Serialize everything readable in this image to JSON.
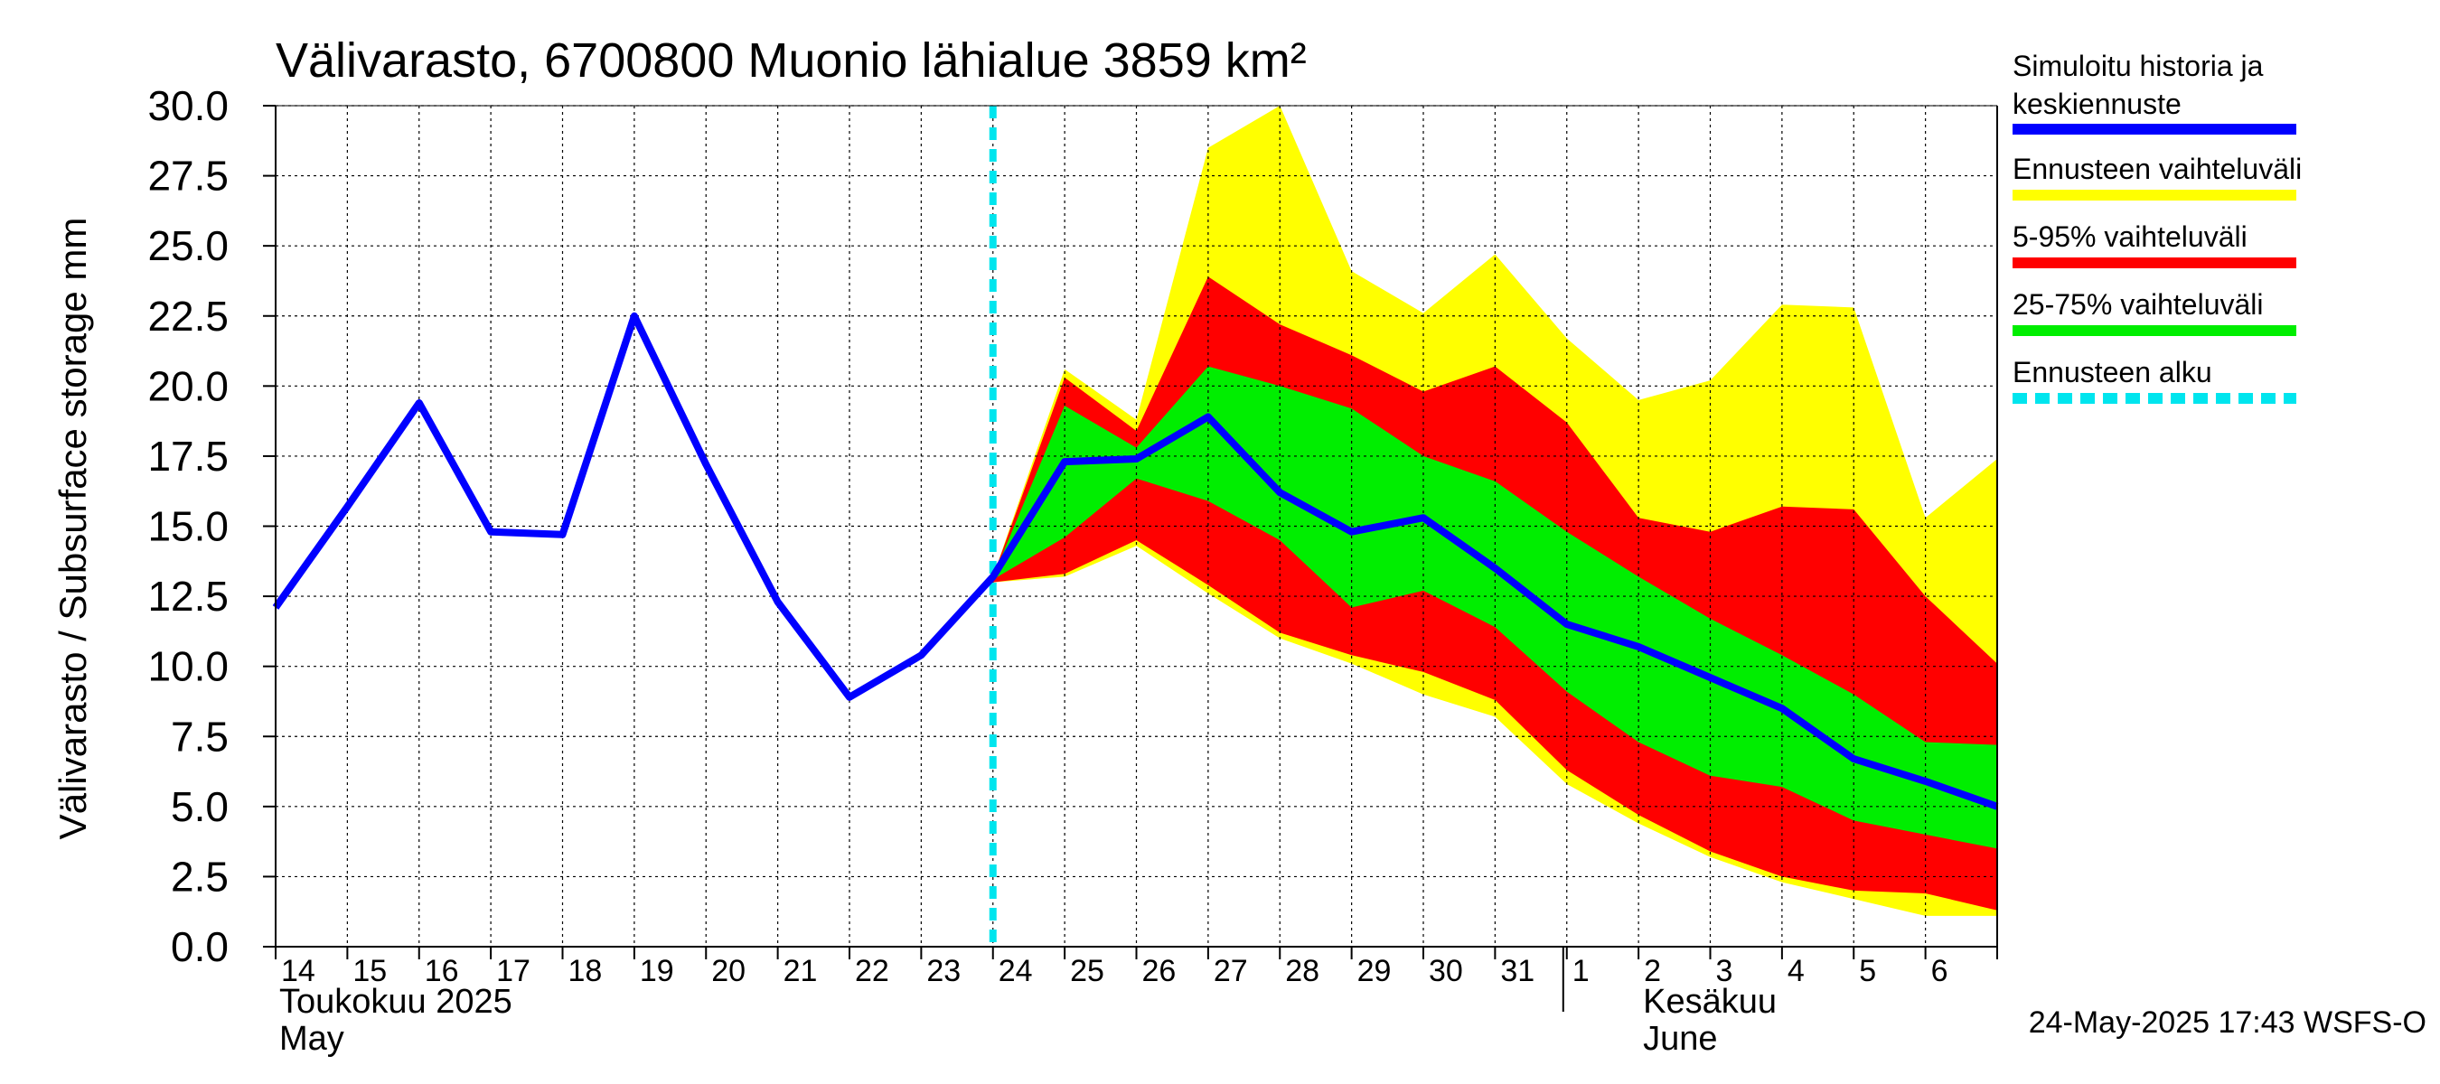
{
  "chart_data": {
    "type": "area",
    "title": "Välivarasto, 6700800 Muonio lähialue 3859 km²",
    "ylabel": "Välivarasto / Subsurface storage  mm",
    "ylim": [
      0,
      30
    ],
    "yticks": [
      "0.0",
      "2.5",
      "5.0",
      "7.5",
      "10.0",
      "12.5",
      "15.0",
      "17.5",
      "20.0",
      "22.5",
      "25.0",
      "27.5",
      "30.0"
    ],
    "x_labels": [
      "14",
      "15",
      "16",
      "17",
      "18",
      "19",
      "20",
      "21",
      "22",
      "23",
      "24",
      "25",
      "26",
      "27",
      "28",
      "29",
      "30",
      "31",
      "1",
      "2",
      "3",
      "4",
      "5",
      "6"
    ],
    "month_labels": [
      {
        "line1": "Toukokuu  2025",
        "line2": "May"
      },
      {
        "line1": "Kesäkuu",
        "line2": "June"
      }
    ],
    "grid": true,
    "legend_placement": "right",
    "forecast_start_day": 24,
    "history": {
      "name": "Simuloitu historia ja keskiennuste",
      "x": [
        14,
        15,
        16,
        17,
        18,
        19,
        20,
        21,
        22,
        23,
        24,
        25,
        26,
        27,
        28,
        29,
        30,
        31,
        32,
        33,
        34,
        35,
        36,
        37,
        38
      ],
      "values": [
        12.1,
        15.7,
        19.4,
        14.8,
        14.7,
        22.5,
        17.2,
        12.3,
        8.9,
        10.4,
        13.2,
        17.3,
        17.4,
        18.9,
        16.2,
        14.8,
        15.3,
        13.5,
        11.5,
        10.7,
        9.6,
        8.5,
        6.7,
        5.9,
        5.0
      ]
    },
    "bands": [
      {
        "name": "Ennusteen vaihteluväli",
        "color": "#ffff00",
        "x": [
          24,
          25,
          26,
          27,
          28,
          29,
          30,
          31,
          32,
          33,
          34,
          35,
          36,
          37,
          38
        ],
        "upper": [
          13.2,
          20.6,
          18.8,
          28.5,
          30.0,
          24.1,
          22.6,
          24.7,
          21.7,
          19.5,
          20.2,
          22.9,
          22.8,
          15.3,
          17.4
        ],
        "lower": [
          13.0,
          13.2,
          14.3,
          12.6,
          11.0,
          10.1,
          9.0,
          8.2,
          5.8,
          4.4,
          3.2,
          2.3,
          1.7,
          1.1,
          1.1
        ]
      },
      {
        "name": "5-95% vaihteluväli",
        "color": "#ff0000",
        "x": [
          24,
          25,
          26,
          27,
          28,
          29,
          30,
          31,
          32,
          33,
          34,
          35,
          36,
          37,
          38
        ],
        "upper": [
          13.2,
          20.3,
          18.4,
          23.9,
          22.2,
          21.1,
          19.8,
          20.7,
          18.7,
          15.3,
          14.8,
          15.7,
          15.6,
          12.5,
          10.1
        ],
        "lower": [
          13.0,
          13.3,
          14.5,
          12.9,
          11.2,
          10.4,
          9.8,
          8.8,
          6.3,
          4.7,
          3.4,
          2.5,
          2.0,
          1.9,
          1.3
        ]
      },
      {
        "name": "25-75% vaihteluväli",
        "color": "#00ee00",
        "x": [
          24,
          25,
          26,
          27,
          28,
          29,
          30,
          31,
          32,
          33,
          34,
          35,
          36,
          37,
          38
        ],
        "upper": [
          13.2,
          19.3,
          17.8,
          20.7,
          20.0,
          19.2,
          17.5,
          16.6,
          14.8,
          13.2,
          11.7,
          10.4,
          9.0,
          7.3,
          7.2
        ],
        "lower": [
          13.1,
          14.6,
          16.7,
          15.9,
          14.5,
          12.1,
          12.7,
          11.4,
          9.1,
          7.3,
          6.1,
          5.7,
          4.5,
          4.0,
          3.5
        ]
      }
    ],
    "legend": [
      {
        "label": "Simuloitu historia ja keskiennuste",
        "color": "#0000ff",
        "style": "solid"
      },
      {
        "label": "Ennusteen vaihteluväli",
        "color": "#ffff00",
        "style": "solid"
      },
      {
        "label": "5-95% vaihteluväli",
        "color": "#ff0000",
        "style": "solid"
      },
      {
        "label": "25-75% vaihteluväli",
        "color": "#00ee00",
        "style": "solid"
      },
      {
        "label": "Ennusteen alku",
        "color": "#00e5ee",
        "style": "dashed"
      }
    ],
    "timestamp": "24-May-2025 17:43 WSFS-O"
  }
}
